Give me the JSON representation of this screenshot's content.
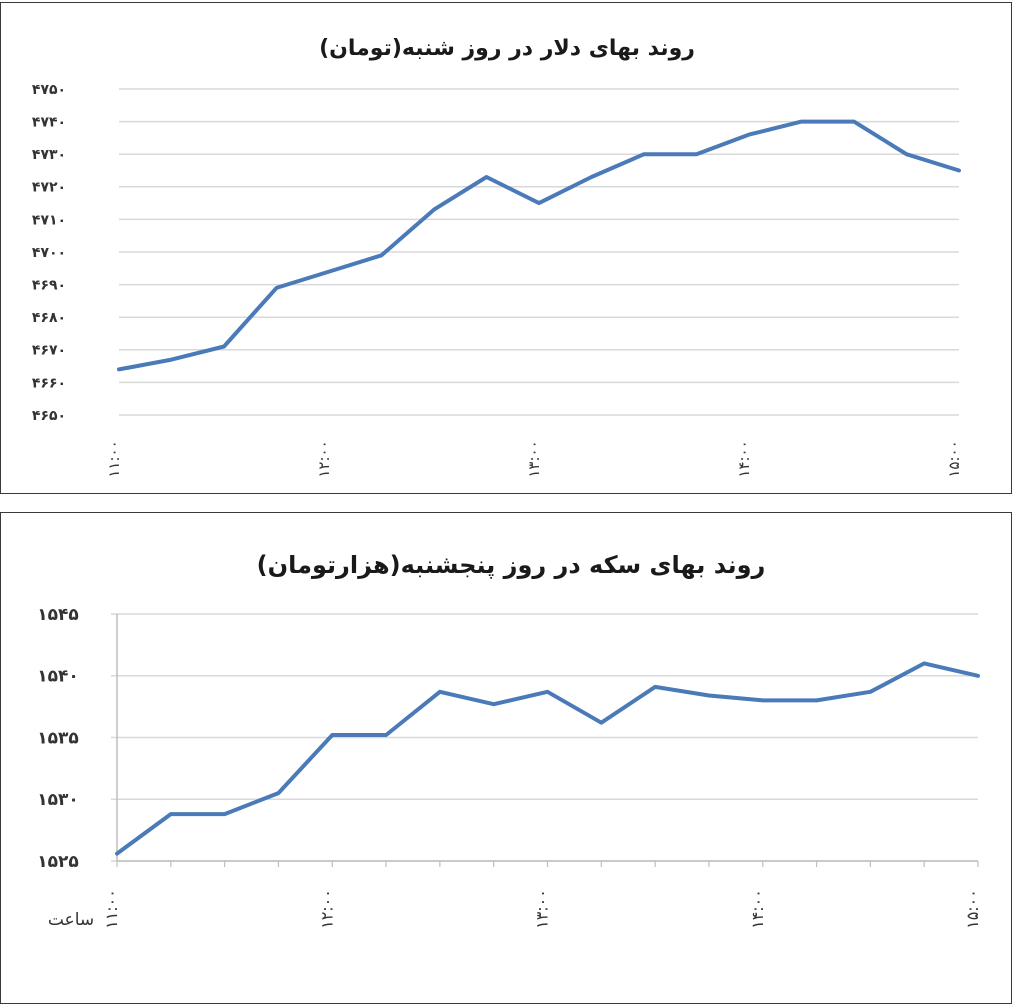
{
  "colors": {
    "line": "#4a7ab8",
    "grid": "#d9d9d9",
    "axis": "#bfbfbf",
    "border": "#3a3a3a"
  },
  "chart_data": [
    {
      "type": "line",
      "title": "روند بهای دلار در روز شنبه(تومان)",
      "xlabel": "",
      "ylabel": "",
      "ylim": [
        4650,
        4750
      ],
      "yticks": [
        "۴۶۵۰",
        "۴۶۶۰",
        "۴۶۷۰",
        "۴۶۸۰",
        "۴۶۹۰",
        "۴۷۰۰",
        "۴۷۱۰",
        "۴۷۲۰",
        "۴۷۳۰",
        "۴۷۴۰",
        "۴۷۵۰"
      ],
      "ytick_values": [
        4650,
        4660,
        4670,
        4680,
        4690,
        4700,
        4710,
        4720,
        4730,
        4740,
        4750
      ],
      "xticks": [
        "۱۱:۰۰",
        "۱۲:۰۰",
        "۱۳:۰۰",
        "۱۴:۰۰",
        "۱۵:۰۰"
      ],
      "xtick_values": [
        11,
        12,
        13,
        14,
        15
      ],
      "xlim": [
        11,
        15
      ],
      "x": [
        11,
        11.25,
        11.5,
        11.75,
        12,
        12.25,
        12.5,
        12.75,
        13,
        13.25,
        13.5,
        13.75,
        14,
        14.25,
        14.5,
        14.75,
        15
      ],
      "series": [
        {
          "values": [
            4664,
            4667,
            4671,
            4689,
            4694,
            4699,
            4713,
            4723,
            4715,
            4723,
            4730,
            4730,
            4736,
            4740,
            4740,
            4730,
            4725
          ]
        }
      ]
    },
    {
      "type": "line",
      "title": "روند بهای سکه در روز پنجشنبه(هزارتومان)",
      "xlabel": "ساعت",
      "ylabel": "",
      "ylim": [
        1525,
        1545
      ],
      "yticks": [
        "۱۵۲۵",
        "۱۵۳۰",
        "۱۵۳۵",
        "۱۵۴۰",
        "۱۵۴۵"
      ],
      "ytick_values": [
        1525,
        1530,
        1535,
        1540,
        1545
      ],
      "xticks": [
        "۱۱:۰۰",
        "۱۲:۰۰",
        "۱۳:۰۰",
        "۱۴:۰۰",
        "۱۵:۰۰"
      ],
      "xtick_values": [
        11,
        12,
        13,
        14,
        15
      ],
      "xlim": [
        11,
        15
      ],
      "x": [
        11,
        11.25,
        11.5,
        11.75,
        12,
        12.25,
        12.5,
        12.75,
        13,
        13.25,
        13.5,
        13.75,
        14,
        14.25,
        14.5,
        14.75,
        15
      ],
      "series": [
        {
          "values": [
            1525.6,
            1528.8,
            1528.8,
            1530.5,
            1535.2,
            1535.2,
            1538.7,
            1537.7,
            1538.7,
            1536.2,
            1539.1,
            1538.4,
            1538.0,
            1538.0,
            1538.7,
            1541.0,
            1540.0
          ]
        }
      ]
    }
  ]
}
